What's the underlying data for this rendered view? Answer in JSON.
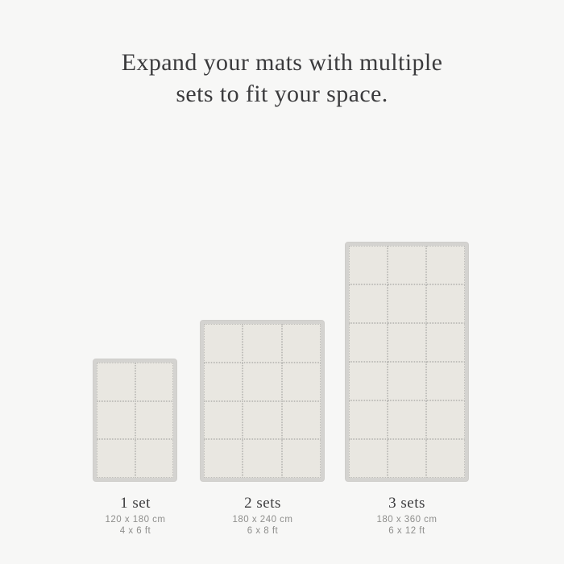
{
  "heading": {
    "line1": "Expand your mats with multiple",
    "line2": "sets to fit your space."
  },
  "mats": [
    {
      "label": "1 set",
      "size_cm": "120 x 180 cm",
      "size_ft": "4 x 6 ft",
      "columns": 2,
      "rows": 3,
      "tiles": 6
    },
    {
      "label": "2 sets",
      "size_cm": "180 x 240 cm",
      "size_ft": "6 x 8 ft",
      "columns": 3,
      "rows": 4,
      "tiles": 12
    },
    {
      "label": "3 sets",
      "size_cm": "180 x 360 cm",
      "size_ft": "6 x 12 ft",
      "columns": 3,
      "rows": 6,
      "tiles": 18
    }
  ],
  "colors": {
    "background": "#f7f7f6",
    "heading_text": "#3b3b3d",
    "mat_frame": "#d4d3d0",
    "tile_fill": "#e9e7e1",
    "tile_seam": "#bfbeba",
    "dimension_text": "#8e8e8c"
  }
}
